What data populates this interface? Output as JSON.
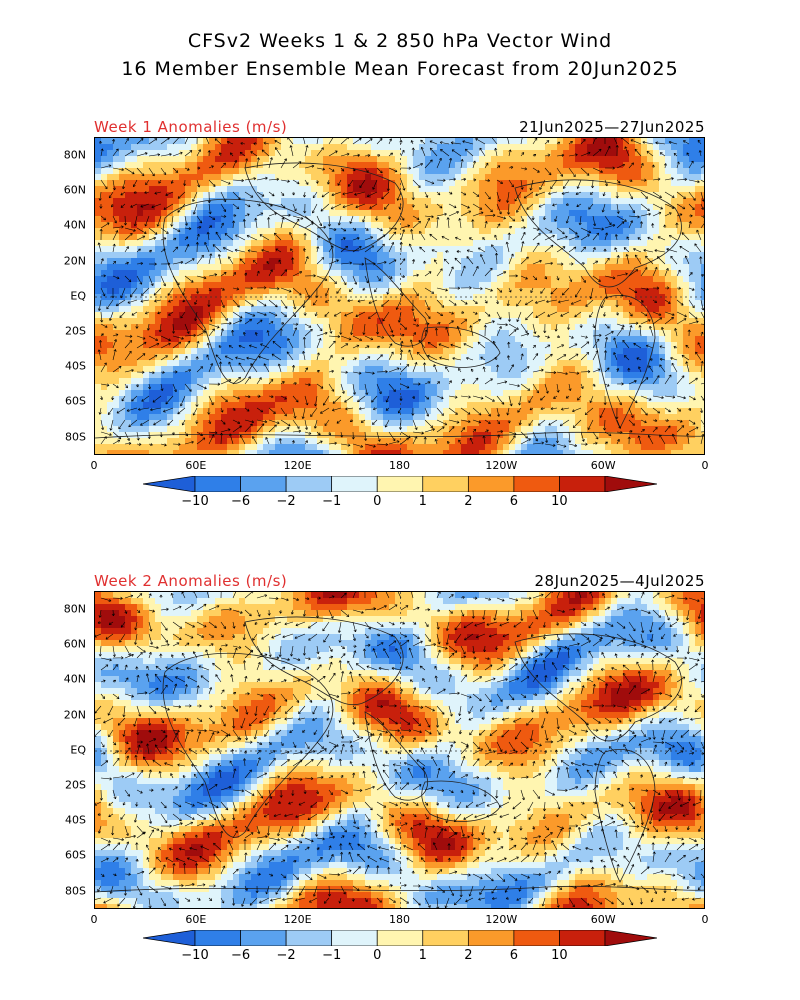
{
  "title_line1": "CFSv2 Weeks 1 & 2 850 hPa Vector Wind",
  "title_line2": "16 Member Ensemble Mean Forecast from 20Jun2025",
  "panels": [
    {
      "label": "Week 1 Anomalies (m/s)",
      "dates": "21Jun2025—27Jun2025"
    },
    {
      "label": "Week 2 Anomalies (m/s)",
      "dates": "28Jun2025—4Jul2025"
    }
  ],
  "lat_labels": [
    "80N",
    "60N",
    "40N",
    "20N",
    "EQ",
    "20S",
    "40S",
    "60S",
    "80S"
  ],
  "lon_labels": [
    "0",
    "60E",
    "120E",
    "180",
    "120W",
    "60W",
    "0"
  ],
  "colorbar": {
    "labels": [
      "−10",
      "−6",
      "−2",
      "−1",
      "0",
      "1",
      "2",
      "6",
      "10"
    ],
    "colors": [
      "#1e5fd8",
      "#2f7fe8",
      "#5aa2ef",
      "#9dcbf5",
      "#dff4fb",
      "#fff5b0",
      "#ffd060",
      "#fb9a2a",
      "#ef5a10",
      "#c8200c",
      "#a00c0c"
    ]
  }
}
